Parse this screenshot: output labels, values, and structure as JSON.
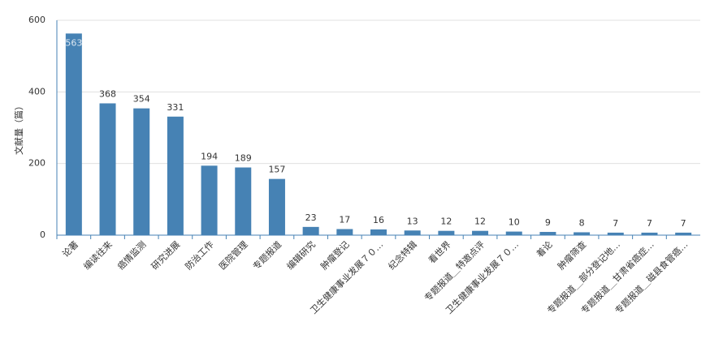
{
  "chart_data": {
    "type": "bar",
    "y_label": "文献量（篇）",
    "categories": [
      "论著",
      "编读往来",
      "癌情监测",
      "研究进展",
      "防治工作",
      "医院管理",
      "专题报道",
      "编辑研究",
      "肿瘤登记",
      "卫生健康事业发展７０…",
      "纪念特辑",
      "看世界",
      "专题报道＿特邀点评",
      "卫生健康事业发展７０…",
      "着论",
      "肿瘤筛查",
      "专题报道＿部分登记地…",
      "专题报道＿甘肃省癌症…",
      "专题报道＿磁县食管癌…"
    ],
    "values": [
      563,
      368,
      354,
      331,
      194,
      189,
      157,
      23,
      17,
      16,
      13,
      12,
      12,
      10,
      9,
      8,
      7,
      7,
      7
    ],
    "color": "#4682b4",
    "ylim": [
      0,
      600
    ],
    "yticks": [
      0,
      200,
      400,
      600
    ],
    "grid": true
  }
}
